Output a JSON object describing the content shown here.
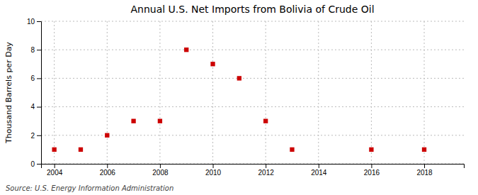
{
  "chart_data": {
    "type": "scatter",
    "title": "Annual U.S. Net Imports from Bolivia of Crude Oil",
    "ylabel": "Thousand Barrels per Day",
    "source": "Source: U.S. Energy Information Administration",
    "x": [
      2004,
      2005,
      2006,
      2007,
      2008,
      2009,
      2010,
      2011,
      2012,
      2013,
      2016,
      2018
    ],
    "values": [
      1,
      1,
      2,
      3,
      3,
      8,
      7,
      6,
      3,
      1,
      1,
      1
    ],
    "color": "#cc0000",
    "marker": "square",
    "xlim": [
      2003.5,
      2019.5
    ],
    "ylim": [
      0,
      10
    ],
    "xticks": [
      2004,
      2006,
      2008,
      2010,
      2012,
      2014,
      2016,
      2018
    ],
    "yticks": [
      0,
      2,
      4,
      6,
      8,
      10
    ],
    "grid": true
  }
}
